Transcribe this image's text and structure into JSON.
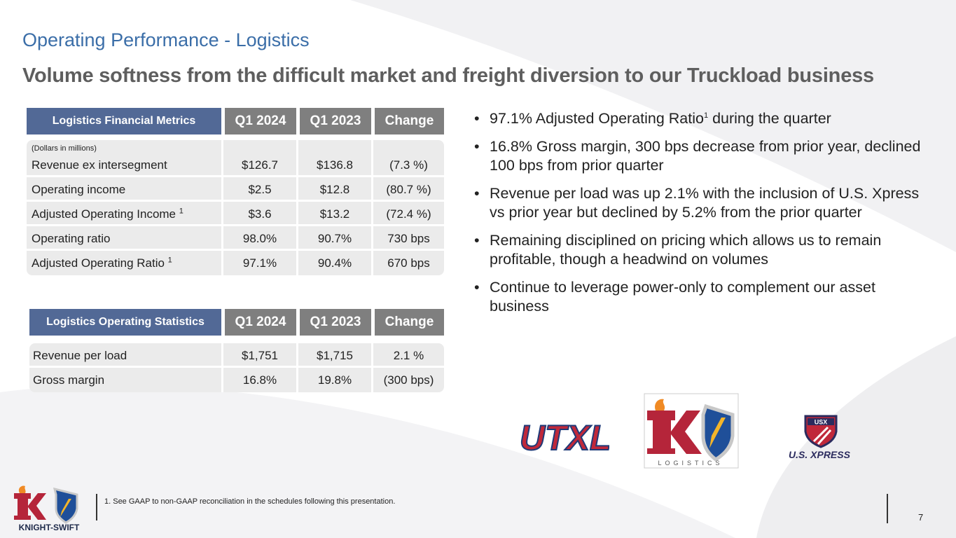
{
  "slide": {
    "title": "Operating Performance - Logistics",
    "subtitle": "Volume softness from the difficult market and freight diversion to our Truckload business",
    "page_number": "7"
  },
  "financial_table": {
    "title": "Logistics Financial Metrics",
    "columns": [
      "Q1 2024",
      "Q1 2023",
      "Change"
    ],
    "note": "(Dollars in millions)",
    "rows": [
      {
        "label": "Revenue ex intersegment",
        "sup": "",
        "values": [
          "$126.7",
          "$136.8",
          "(7.3 %)"
        ]
      },
      {
        "label": "Operating income",
        "sup": "",
        "values": [
          "$2.5",
          "$12.8",
          "(80.7 %)"
        ]
      },
      {
        "label": "Adjusted Operating Income ",
        "sup": "1",
        "values": [
          "$3.6",
          "$13.2",
          "(72.4 %)"
        ]
      },
      {
        "label": "Operating ratio",
        "sup": "",
        "values": [
          "98.0%",
          "90.7%",
          "730 bps"
        ]
      },
      {
        "label": "Adjusted Operating Ratio ",
        "sup": "1",
        "values": [
          "97.1%",
          "90.4%",
          "670 bps"
        ]
      }
    ]
  },
  "operating_table": {
    "title": "Logistics Operating Statistics",
    "columns": [
      "Q1 2024",
      "Q1 2023",
      "Change"
    ],
    "rows": [
      {
        "label": "Revenue per load",
        "values": [
          "$1,751",
          "$1,715",
          "2.1 %"
        ]
      },
      {
        "label": "Gross margin",
        "values": [
          "16.8%",
          "19.8%",
          "(300 bps)"
        ]
      }
    ]
  },
  "bullets": [
    {
      "pre": "97.1% Adjusted Operating Ratio",
      "sup": "1",
      "post": " during the quarter"
    },
    {
      "pre": "16.8% Gross margin, 300 bps decrease from prior year, declined 100 bps from prior quarter",
      "sup": "",
      "post": ""
    },
    {
      "pre": "Revenue per load was up 2.1% with the inclusion of U.S. Xpress vs prior year but declined by 5.2% from the prior quarter",
      "sup": "",
      "post": ""
    },
    {
      "pre": "Remaining disciplined on pricing which allows us to remain profitable, though a headwind on volumes",
      "sup": "",
      "post": ""
    },
    {
      "pre": "Continue to leverage power-only to complement our asset business",
      "sup": "",
      "post": ""
    }
  ],
  "footnote": "1.   See GAAP to non-GAAP reconciliation in the schedules following this presentation.",
  "logos": {
    "utxl": "UTXL",
    "k_logistics": "LOGISTICS",
    "usx_badge": "USX",
    "usx_text": "U.S. XPRESS",
    "knight_swift": "KNIGHT-SWIFT"
  },
  "colors": {
    "title_blue": "#3b6ea8",
    "header_blue": "#526996",
    "header_gray": "#7f7f7f",
    "row_gray": "#ebebeb",
    "knight_red": "#b5253a"
  }
}
